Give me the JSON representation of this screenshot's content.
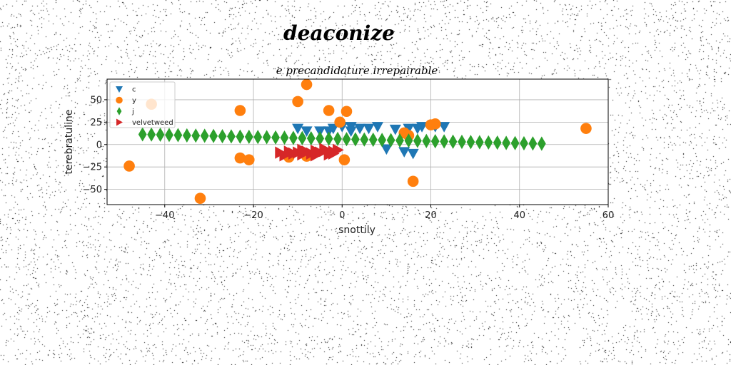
{
  "chart_data": {
    "type": "scatter",
    "suptitle": "deaconize",
    "title": "e precandidature irrepairable",
    "xlabel": "snottily",
    "ylabel": "terebratuline",
    "xlim": [
      -53,
      60
    ],
    "ylim": [
      -67,
      73
    ],
    "xticks": [
      -40,
      -20,
      0,
      20,
      40,
      60
    ],
    "yticks": [
      -50,
      -25,
      0,
      25,
      50
    ],
    "grid": true,
    "legend_position": "upper-left",
    "series": [
      {
        "name": "c",
        "marker": "triangle-down",
        "color": "#1f77b4",
        "points": [
          [
            -10,
            18
          ],
          [
            -8,
            15
          ],
          [
            -5,
            15
          ],
          [
            -2,
            18
          ],
          [
            0,
            20
          ],
          [
            2,
            20
          ],
          [
            4,
            18
          ],
          [
            6,
            18
          ],
          [
            10,
            -5
          ],
          [
            14,
            -8
          ],
          [
            16,
            -10
          ],
          [
            18,
            20
          ],
          [
            21,
            20
          ],
          [
            23,
            20
          ],
          [
            15,
            18
          ],
          [
            17,
            18
          ],
          [
            12,
            17
          ],
          [
            -3,
            15
          ],
          [
            2,
            15
          ],
          [
            8,
            20
          ]
        ]
      },
      {
        "name": "y",
        "marker": "circle",
        "color": "#ff7f0e",
        "points": [
          [
            -48,
            -24
          ],
          [
            -43,
            45
          ],
          [
            -32,
            -60
          ],
          [
            -23,
            38
          ],
          [
            -23,
            -15
          ],
          [
            -21,
            -17
          ],
          [
            -10,
            48
          ],
          [
            -8,
            67
          ],
          [
            -3,
            38
          ],
          [
            1,
            37
          ],
          [
            -0.5,
            25
          ],
          [
            0.5,
            -17
          ],
          [
            14,
            13
          ],
          [
            16,
            -41
          ],
          [
            20,
            22
          ],
          [
            21,
            23
          ],
          [
            55,
            18
          ],
          [
            -12,
            -14
          ],
          [
            -8,
            -13
          ],
          [
            15,
            10
          ]
        ]
      },
      {
        "name": "j",
        "marker": "thin-diamond",
        "color": "#2ca02c",
        "points": [
          [
            -45,
            11.4
          ],
          [
            -43,
            11.2
          ],
          [
            -41,
            11
          ],
          [
            -39,
            10.7
          ],
          [
            -37,
            10.5
          ],
          [
            -35,
            10.2
          ],
          [
            -33,
            10
          ],
          [
            -31,
            9.8
          ],
          [
            -29,
            9.6
          ],
          [
            -27,
            9.3
          ],
          [
            -25,
            9.1
          ],
          [
            -23,
            8.8
          ],
          [
            -21,
            8.6
          ],
          [
            -19,
            8.4
          ],
          [
            -17,
            8.2
          ],
          [
            -15,
            7.9
          ],
          [
            -13,
            7.7
          ],
          [
            -11,
            7.4
          ],
          [
            -9,
            7.2
          ],
          [
            -7,
            7
          ],
          [
            -5,
            6.8
          ],
          [
            -3,
            6.5
          ],
          [
            -1,
            6.3
          ],
          [
            1,
            6
          ],
          [
            3,
            5.8
          ],
          [
            5,
            5.6
          ],
          [
            7,
            5.4
          ],
          [
            9,
            5.1
          ],
          [
            11,
            4.9
          ],
          [
            13,
            4.6
          ],
          [
            15,
            4.4
          ],
          [
            17,
            4.2
          ],
          [
            19,
            4
          ],
          [
            21,
            3.7
          ],
          [
            23,
            3.5
          ],
          [
            25,
            3.2
          ],
          [
            27,
            3
          ],
          [
            29,
            2.8
          ],
          [
            31,
            2.6
          ],
          [
            33,
            2.3
          ],
          [
            35,
            2.1
          ],
          [
            37,
            1.8
          ],
          [
            39,
            1.6
          ],
          [
            41,
            1.4
          ],
          [
            43,
            1.2
          ],
          [
            45,
            1
          ]
        ]
      },
      {
        "name": "velvetweed",
        "marker": "triangle-right",
        "color": "#d62728",
        "points": [
          [
            -14,
            -9
          ],
          [
            -13,
            -12
          ],
          [
            -12,
            -8
          ],
          [
            -11,
            -10
          ],
          [
            -10,
            -9
          ],
          [
            -9,
            -11
          ],
          [
            -8,
            -8
          ],
          [
            -7,
            -10
          ],
          [
            -6,
            -12
          ],
          [
            -5,
            -9
          ],
          [
            -4,
            -7
          ],
          [
            -3,
            -11
          ],
          [
            -2,
            -8
          ],
          [
            -1,
            -6
          ],
          [
            -6,
            -7
          ],
          [
            -4,
            -5
          ],
          [
            -9,
            -6
          ],
          [
            -2,
            -10
          ]
        ]
      }
    ]
  }
}
